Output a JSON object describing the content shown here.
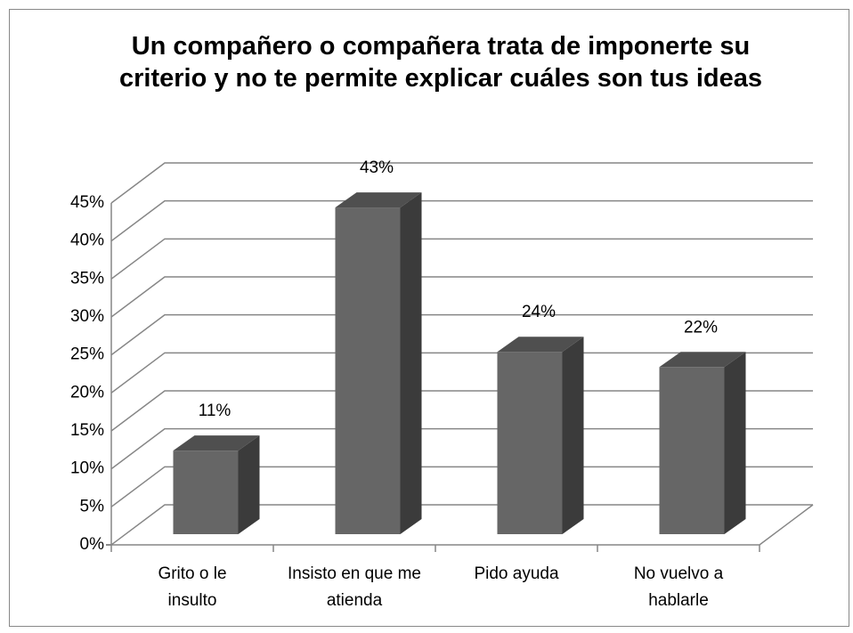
{
  "chart_data": {
    "type": "bar3d",
    "title": "Un compañero o compañera trata de imponerte su criterio y no te permite explicar cuáles son tus ideas",
    "categories": [
      "Grito o le insulto",
      "Insisto en que me atienda",
      "Pido ayuda",
      "No vuelvo a hablarle"
    ],
    "values": [
      11,
      43,
      24,
      22
    ],
    "value_labels": [
      "11%",
      "43%",
      "24%",
      "22%"
    ],
    "color": "#666666",
    "ylim": [
      0,
      45
    ],
    "yticks": [
      {
        "value": 0,
        "label": "0%"
      },
      {
        "value": 5,
        "label": "5%"
      },
      {
        "value": 10,
        "label": "10%"
      },
      {
        "value": 15,
        "label": "15%"
      },
      {
        "value": 20,
        "label": "20%"
      },
      {
        "value": 25,
        "label": "25%"
      },
      {
        "value": 30,
        "label": "30%"
      },
      {
        "value": 35,
        "label": "35%"
      },
      {
        "value": 40,
        "label": "40%"
      },
      {
        "value": 45,
        "label": "45%"
      }
    ],
    "grid": true
  }
}
